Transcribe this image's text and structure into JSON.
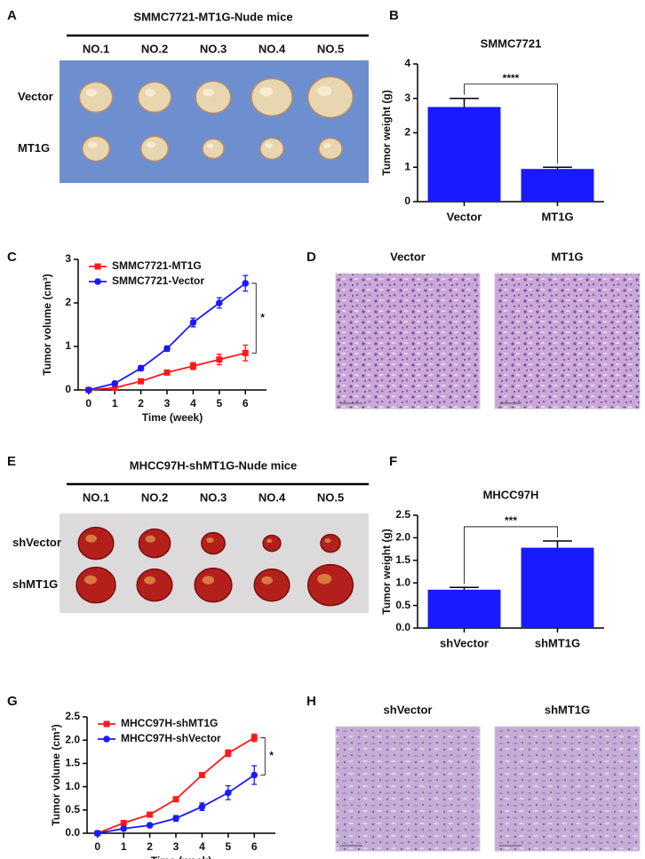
{
  "panel_letters": [
    "A",
    "B",
    "C",
    "D",
    "E",
    "F",
    "G",
    "H"
  ],
  "photo_panels": [
    {
      "title": "SMMC7721-MT1G-Nude mice",
      "columns": [
        "NO.1",
        "NO.2",
        "NO.3",
        "NO.4",
        "NO.5"
      ],
      "rows": [
        "Vector",
        "MT1G"
      ]
    },
    {
      "titles": [
        "Vector",
        "MT1G"
      ]
    },
    {
      "title": "MHCC97H-shMT1G-Nude mice",
      "columns": [
        "NO.1",
        "NO.2",
        "NO.3",
        "NO.4",
        "NO.5"
      ],
      "rows": [
        "shVector",
        "shMT1G"
      ]
    },
    {
      "titles": [
        "shVector",
        "shMT1G"
      ]
    }
  ],
  "chart_data": [
    {
      "type": "bar",
      "title": "SMMC7721",
      "y_label": "Tumor weight (g)",
      "categories": [
        "Vector",
        "MT1G"
      ],
      "values": [
        2.75,
        0.95
      ],
      "errors": [
        0.25,
        0.05
      ],
      "color": "#1a1aff",
      "ylim": [
        0,
        4
      ],
      "yticks": [
        0,
        1,
        2,
        3,
        4
      ],
      "significance": "****"
    },
    {
      "type": "line",
      "x_label": "Time (week)",
      "y_label": "Tumor volume (cm³)",
      "x": [
        0,
        1,
        2,
        3,
        4,
        5,
        6
      ],
      "xlim": [
        -0.4,
        6.4
      ],
      "xticks": [
        0,
        1,
        2,
        3,
        4,
        5,
        6
      ],
      "ylim": [
        0,
        3
      ],
      "yticks": [
        0,
        1,
        2,
        3
      ],
      "legend": "upper-left",
      "significance": "*",
      "series": [
        {
          "name": "SMMC7721-MT1G",
          "color": "#ff1a1a",
          "marker": "square",
          "values": [
            0,
            0.05,
            0.2,
            0.4,
            0.55,
            0.7,
            0.85
          ],
          "errors": [
            0,
            0.02,
            0.03,
            0.05,
            0.08,
            0.12,
            0.18
          ]
        },
        {
          "name": "SMMC7721-Vector",
          "color": "#1a1aff",
          "marker": "circle",
          "values": [
            0,
            0.15,
            0.5,
            0.95,
            1.55,
            2.0,
            2.45
          ],
          "errors": [
            0,
            0.02,
            0.06,
            0.06,
            0.1,
            0.12,
            0.18
          ]
        }
      ]
    },
    {
      "type": "bar",
      "title": "MHCC97H",
      "y_label": "Tumor weight (g)",
      "categories": [
        "shVector",
        "shMT1G"
      ],
      "values": [
        0.85,
        1.78
      ],
      "errors": [
        0.05,
        0.15
      ],
      "color": "#1a1aff",
      "ylim": [
        0,
        2.5
      ],
      "yticks": [
        {
          "value": 0,
          "label": "0.0"
        },
        0.5,
        {
          "value": 1,
          "label": "1.0"
        },
        1.5,
        {
          "value": 2,
          "label": "2.0"
        },
        2.5
      ],
      "significance": "***"
    },
    {
      "type": "line",
      "x_label": "Time (week)",
      "y_label": "Tumor volume (cm³)",
      "x": [
        0,
        1,
        2,
        3,
        4,
        5,
        6
      ],
      "xlim": [
        -0.4,
        6.4
      ],
      "xticks": [
        0,
        1,
        2,
        3,
        4,
        5,
        6
      ],
      "ylim": [
        0,
        2.5
      ],
      "yticks": [
        {
          "value": 0,
          "label": "0.0"
        },
        0.5,
        {
          "value": 1,
          "label": "1.0"
        },
        1.5,
        {
          "value": 2,
          "label": "2.0"
        },
        2.5
      ],
      "legend": "upper-left",
      "significance": "*",
      "series": [
        {
          "name": "MHCC97H-shMT1G",
          "color": "#ff1a1a",
          "marker": "square",
          "values": [
            0,
            0.22,
            0.4,
            0.73,
            1.25,
            1.72,
            2.05
          ],
          "errors": [
            0,
            0.02,
            0.03,
            0.05,
            0.05,
            0.07,
            0.08
          ]
        },
        {
          "name": "MHCC97H-shVector",
          "color": "#1a1aff",
          "marker": "circle",
          "values": [
            0,
            0.1,
            0.17,
            0.32,
            0.57,
            0.87,
            1.25
          ],
          "errors": [
            0,
            0.02,
            0.03,
            0.06,
            0.08,
            0.15,
            0.2
          ]
        }
      ]
    }
  ]
}
